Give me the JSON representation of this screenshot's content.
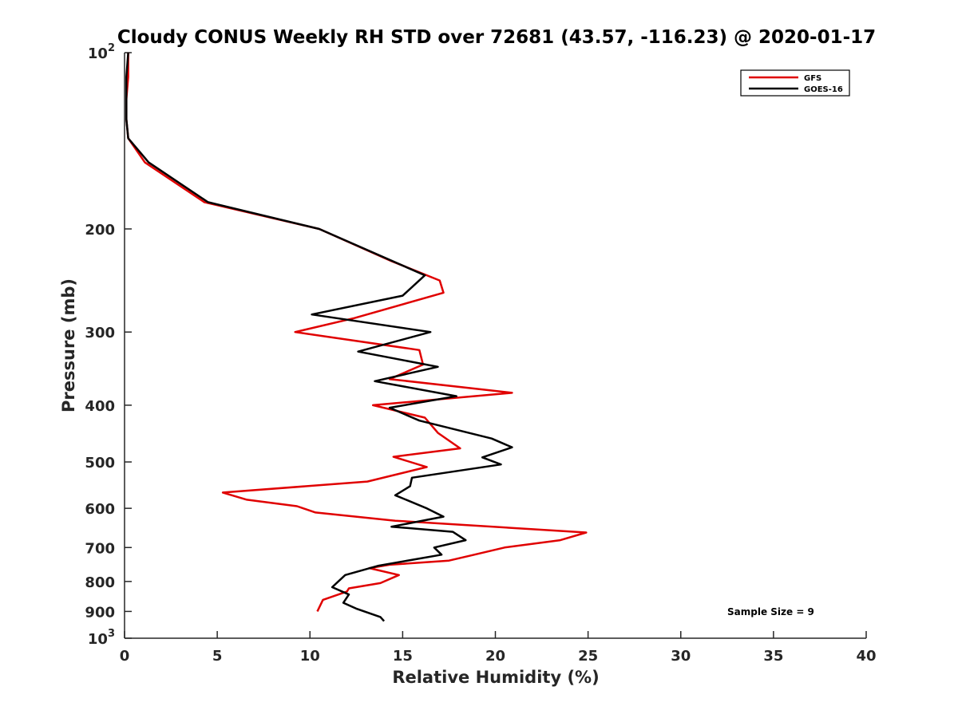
{
  "chart_data": {
    "type": "line",
    "title": "Cloudy CONUS Weekly RH STD over 72681 (43.57, -116.23) @ 2020-01-17",
    "xlabel": "Relative Humidity (%)",
    "ylabel": "Pressure (mb)",
    "xlim": [
      0,
      40
    ],
    "ylim": [
      100,
      1000
    ],
    "y_scale": "log",
    "y_reversed": true,
    "grid": false,
    "legend_position": "top-right",
    "x_ticks": [
      "0",
      "5",
      "10",
      "15",
      "20",
      "25",
      "30",
      "35",
      "40"
    ],
    "y_ticks": [
      {
        "value": 100,
        "base": "10",
        "exp": "2"
      },
      {
        "value": 200,
        "label": "200"
      },
      {
        "value": 300,
        "label": "300"
      },
      {
        "value": 400,
        "label": "400"
      },
      {
        "value": 500,
        "label": "500"
      },
      {
        "value": 600,
        "label": "600"
      },
      {
        "value": 700,
        "label": "700"
      },
      {
        "value": 800,
        "label": "800"
      },
      {
        "value": 900,
        "label": "900"
      },
      {
        "value": 1000,
        "base": "10",
        "exp": "3"
      }
    ],
    "annotation": "Sample Size = 9",
    "series": [
      {
        "name": "GFS",
        "color": "#e00000",
        "points": [
          [
            0.2,
            100
          ],
          [
            0.2,
            110
          ],
          [
            0.1,
            120
          ],
          [
            0.1,
            130
          ],
          [
            0.2,
            140
          ],
          [
            1.1,
            154
          ],
          [
            4.3,
            180
          ],
          [
            10.5,
            200
          ],
          [
            14.4,
            227
          ],
          [
            17.0,
            245
          ],
          [
            17.2,
            257
          ],
          [
            12.4,
            284
          ],
          [
            9.2,
            300
          ],
          [
            15.9,
            322
          ],
          [
            16.1,
            341
          ],
          [
            14.3,
            361
          ],
          [
            20.9,
            381
          ],
          [
            13.4,
            400
          ],
          [
            16.2,
            420
          ],
          [
            16.9,
            446
          ],
          [
            18.1,
            474
          ],
          [
            14.5,
            490
          ],
          [
            16.3,
            510
          ],
          [
            13.1,
            540
          ],
          [
            5.3,
            564
          ],
          [
            6.6,
            580
          ],
          [
            9.3,
            595
          ],
          [
            10.3,
            610
          ],
          [
            14.6,
            630
          ],
          [
            24.9,
            660
          ],
          [
            23.5,
            680
          ],
          [
            20.5,
            700
          ],
          [
            18.7,
            722
          ],
          [
            17.5,
            737
          ],
          [
            14.3,
            749
          ],
          [
            13.2,
            759
          ],
          [
            14.8,
            780
          ],
          [
            13.8,
            805
          ],
          [
            12.1,
            822
          ],
          [
            12.0,
            832
          ],
          [
            10.7,
            860
          ],
          [
            10.4,
            900
          ]
        ]
      },
      {
        "name": "GOES-16",
        "color": "#000000",
        "points": [
          [
            0.2,
            100
          ],
          [
            0.1,
            110
          ],
          [
            0.1,
            120
          ],
          [
            0.1,
            130
          ],
          [
            0.2,
            140
          ],
          [
            1.3,
            154
          ],
          [
            4.5,
            180
          ],
          [
            10.5,
            200
          ],
          [
            16.2,
            240
          ],
          [
            15.0,
            260
          ],
          [
            10.1,
            280
          ],
          [
            16.5,
            300
          ],
          [
            12.6,
            324
          ],
          [
            16.9,
            344
          ],
          [
            13.5,
            364
          ],
          [
            17.9,
            386
          ],
          [
            14.3,
            404
          ],
          [
            15.9,
            425
          ],
          [
            19.8,
            456
          ],
          [
            20.9,
            472
          ],
          [
            19.3,
            491
          ],
          [
            20.3,
            505
          ],
          [
            15.5,
            532
          ],
          [
            15.4,
            550
          ],
          [
            14.6,
            570
          ],
          [
            16.3,
            600
          ],
          [
            17.2,
            620
          ],
          [
            14.4,
            645
          ],
          [
            17.7,
            658
          ],
          [
            18.4,
            680
          ],
          [
            16.7,
            700
          ],
          [
            17.1,
            720
          ],
          [
            13.7,
            752
          ],
          [
            11.9,
            780
          ],
          [
            11.2,
            818
          ],
          [
            12.1,
            842
          ],
          [
            11.8,
            870
          ],
          [
            12.5,
            890
          ],
          [
            13.8,
            920
          ],
          [
            14.0,
            935
          ]
        ]
      }
    ]
  }
}
